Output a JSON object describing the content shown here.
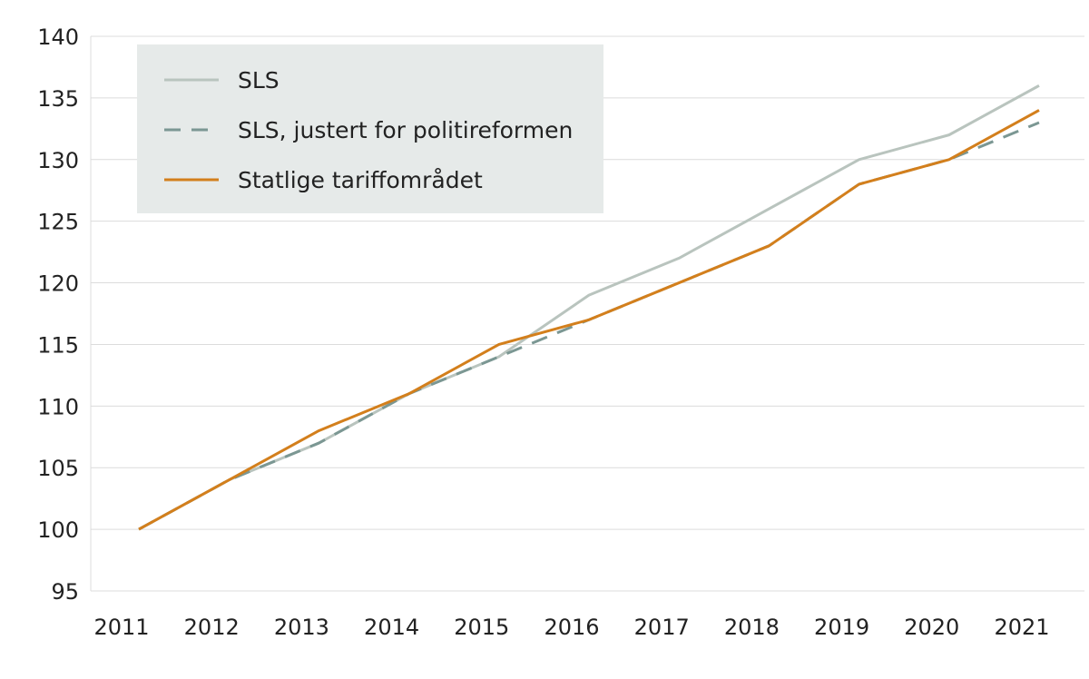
{
  "chart_data": {
    "type": "line",
    "title": "",
    "xlabel": "",
    "ylabel": "",
    "x": [
      "2011",
      "2012",
      "2013",
      "2014",
      "2015",
      "2016",
      "2017",
      "2018",
      "2019",
      "2020",
      "2021"
    ],
    "ylim": [
      95,
      140
    ],
    "yticks": [
      95,
      100,
      105,
      110,
      115,
      120,
      125,
      130,
      135,
      140
    ],
    "grid": true,
    "legend_placement": "top-left",
    "legend_background": "#e6eae9",
    "series": [
      {
        "name": "SLS",
        "color": "#b9c4be",
        "dash": false,
        "values": [
          100,
          104,
          107,
          111,
          114,
          119,
          122,
          126,
          130,
          132,
          136
        ]
      },
      {
        "name": "SLS, justert for politireformen",
        "color": "#7b9793",
        "dash": true,
        "values": [
          100,
          104,
          107,
          111,
          114,
          117,
          120,
          123,
          128,
          130,
          133
        ]
      },
      {
        "name": "Statlige tariffområdet",
        "color": "#d37f1c",
        "dash": false,
        "values": [
          100,
          104,
          108,
          111,
          115,
          117,
          120,
          123,
          128,
          130,
          134
        ]
      }
    ]
  }
}
